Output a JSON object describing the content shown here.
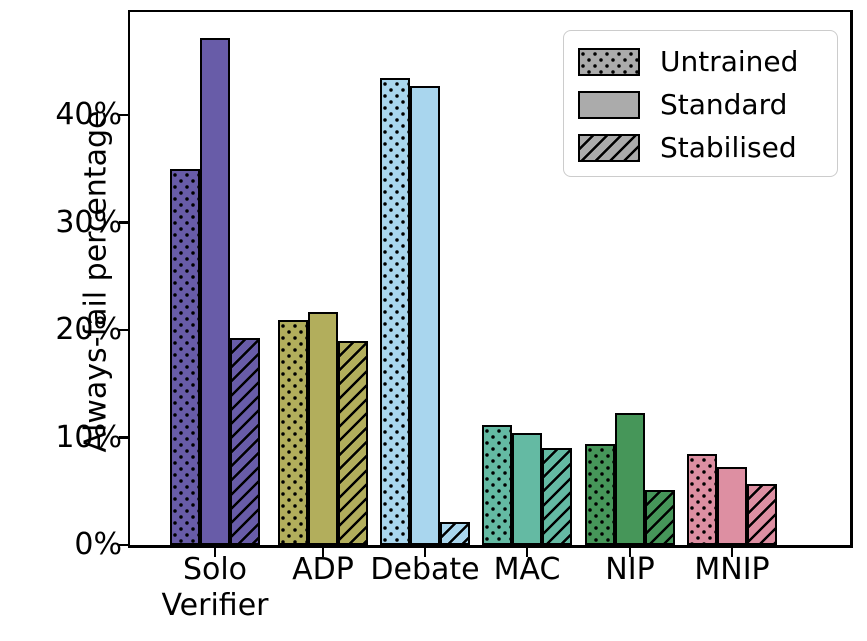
{
  "chart_data": {
    "type": "bar",
    "title": "",
    "xlabel": "",
    "ylabel": "Always-fail percentage",
    "categories": [
      "Solo\nVerifier",
      "ADP",
      "Debate",
      "MAC",
      "NIP",
      "MNIP"
    ],
    "series": [
      {
        "name": "Untrained",
        "hatch": "dots",
        "values": [
          35.0,
          20.9,
          43.5,
          11.2,
          9.4,
          8.5
        ]
      },
      {
        "name": "Standard",
        "hatch": "none",
        "values": [
          47.2,
          21.7,
          42.7,
          10.4,
          12.3,
          7.3
        ]
      },
      {
        "name": "Stabilised",
        "hatch": "diagonal",
        "values": [
          19.3,
          19.0,
          2.1,
          9.0,
          5.1,
          5.7
        ]
      }
    ],
    "category_colors": [
      "#685ca8",
      "#b2ae5c",
      "#a9d6ee",
      "#64baa3",
      "#469659",
      "#dd8fa2"
    ],
    "bar_edge_color": "#000000",
    "yticks": [
      {
        "value": 0,
        "label": "0%"
      },
      {
        "value": 10,
        "label": "10%"
      },
      {
        "value": 20,
        "label": "20%"
      },
      {
        "value": 30,
        "label": "30%"
      },
      {
        "value": 40,
        "label": "40%"
      }
    ],
    "ylim": [
      0,
      49.6
    ],
    "grid": false,
    "legend": {
      "position": "upper right",
      "swatch_color": "#ababab",
      "entries": [
        {
          "label": "Untrained",
          "hatch": "dots"
        },
        {
          "label": "Standard",
          "hatch": "none"
        },
        {
          "label": "Stabilised",
          "hatch": "diagonal"
        }
      ]
    }
  }
}
